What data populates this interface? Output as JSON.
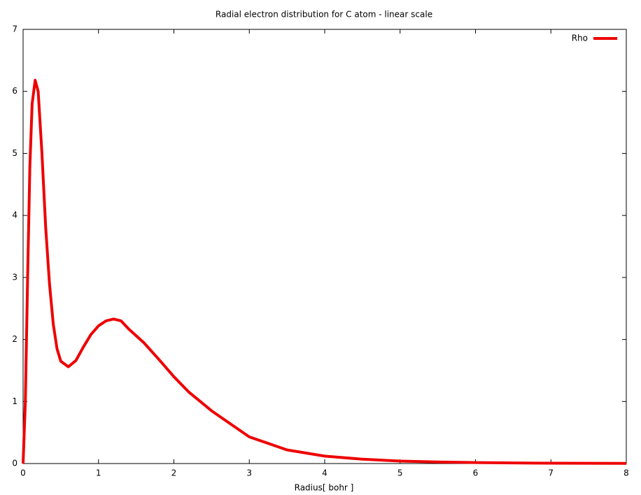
{
  "chart_data": {
    "type": "line",
    "title": "Radial electron distribution for C atom - linear scale",
    "x_label": "Radius[ bohr ]",
    "x": [
      0,
      0.03,
      0.06,
      0.09,
      0.12,
      0.16,
      0.2,
      0.25,
      0.3,
      0.35,
      0.4,
      0.45,
      0.5,
      0.6,
      0.7,
      0.8,
      0.9,
      1.0,
      1.1,
      1.2,
      1.3,
      1.4,
      1.6,
      1.8,
      2.0,
      2.2,
      2.5,
      3.0,
      3.5,
      4.0,
      4.5,
      5.0,
      5.5,
      6.0,
      7.0,
      8.0
    ],
    "series": [
      {
        "name": "Rho",
        "color": "#ee0000",
        "values": [
          0,
          1.0,
          3.0,
          4.8,
          5.8,
          6.18,
          6.0,
          5.0,
          3.8,
          2.9,
          2.25,
          1.85,
          1.65,
          1.56,
          1.66,
          1.88,
          2.08,
          2.22,
          2.3,
          2.33,
          2.3,
          2.17,
          1.95,
          1.68,
          1.4,
          1.15,
          0.85,
          0.43,
          0.22,
          0.12,
          0.07,
          0.04,
          0.025,
          0.015,
          0.005,
          0.002
        ]
      }
    ],
    "xlim": [
      0,
      8
    ],
    "xticks": [
      0,
      1,
      2,
      3,
      4,
      5,
      6,
      7,
      8
    ],
    "ylim": [
      0,
      7
    ],
    "yticks": [
      0,
      1,
      2,
      3,
      4,
      5,
      6,
      7
    ],
    "legend": "upper right"
  }
}
